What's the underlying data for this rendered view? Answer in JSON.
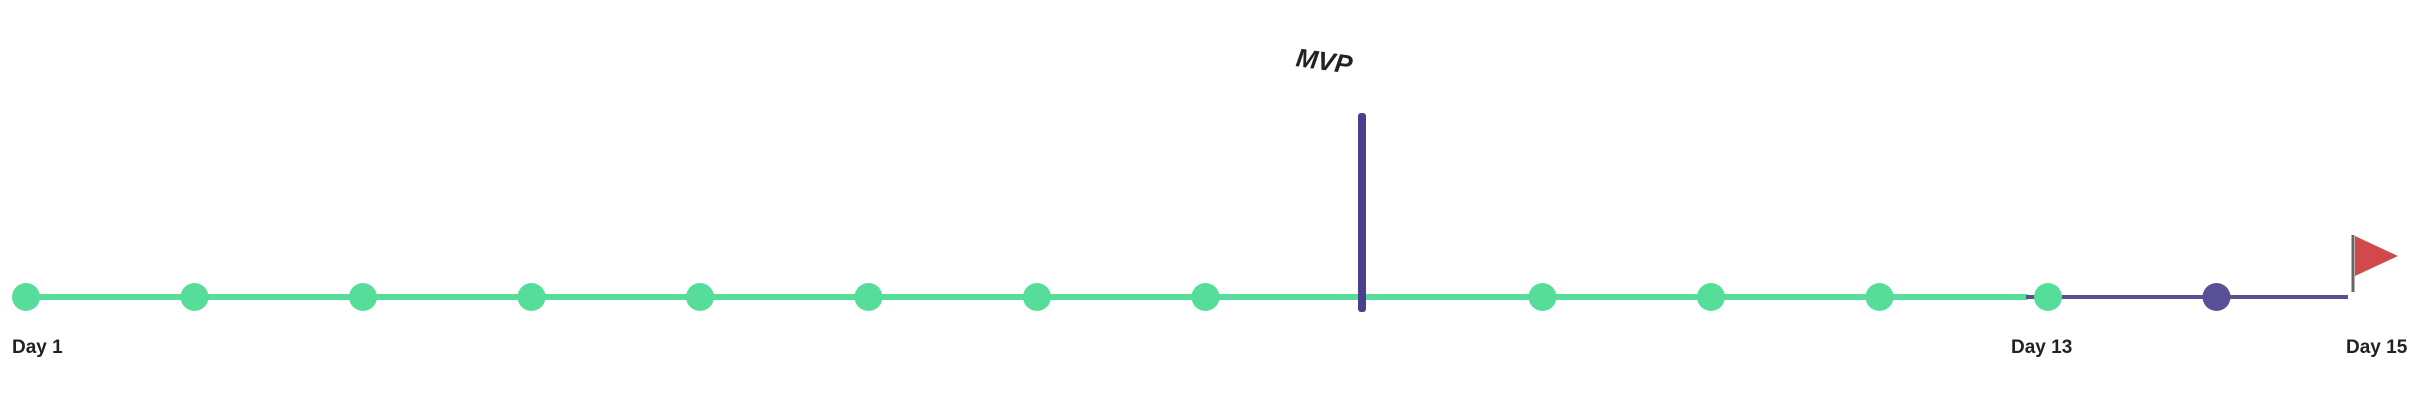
{
  "timeline": {
    "total_days": 15,
    "current_day": 13,
    "completed_dots": 12,
    "remaining_dots": 1,
    "start_label": "Day 1",
    "current_label": "Day 13",
    "end_label": "Day 15",
    "milestone": {
      "label": "MVP",
      "position_day": 8.95
    }
  },
  "colors": {
    "completed": "#55DD99",
    "remaining": "#585096",
    "milestone": "#4A3F8C",
    "flag": "#D04A4A",
    "flag_pole": "#666666",
    "text": "#222222"
  },
  "icons": {
    "finish": "flag-icon"
  }
}
